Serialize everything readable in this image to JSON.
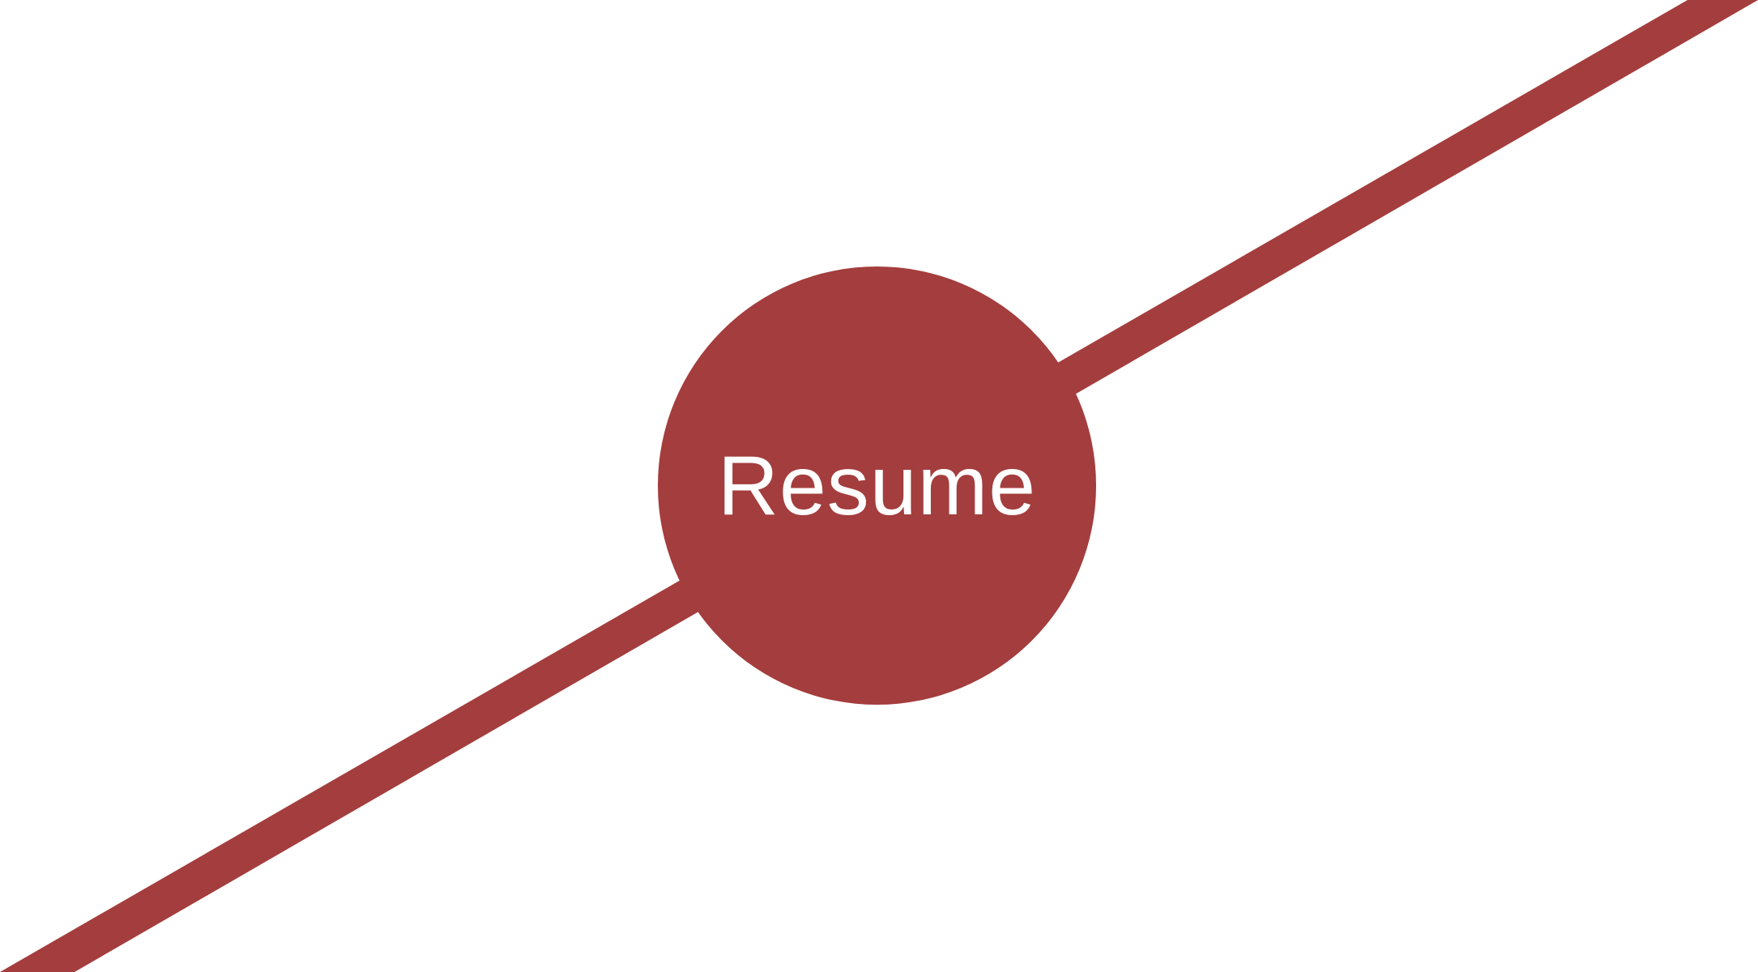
{
  "theme": {
    "accent": "#a43d3d",
    "background": "#ffffff"
  },
  "resume_button": {
    "label": "Resume"
  }
}
